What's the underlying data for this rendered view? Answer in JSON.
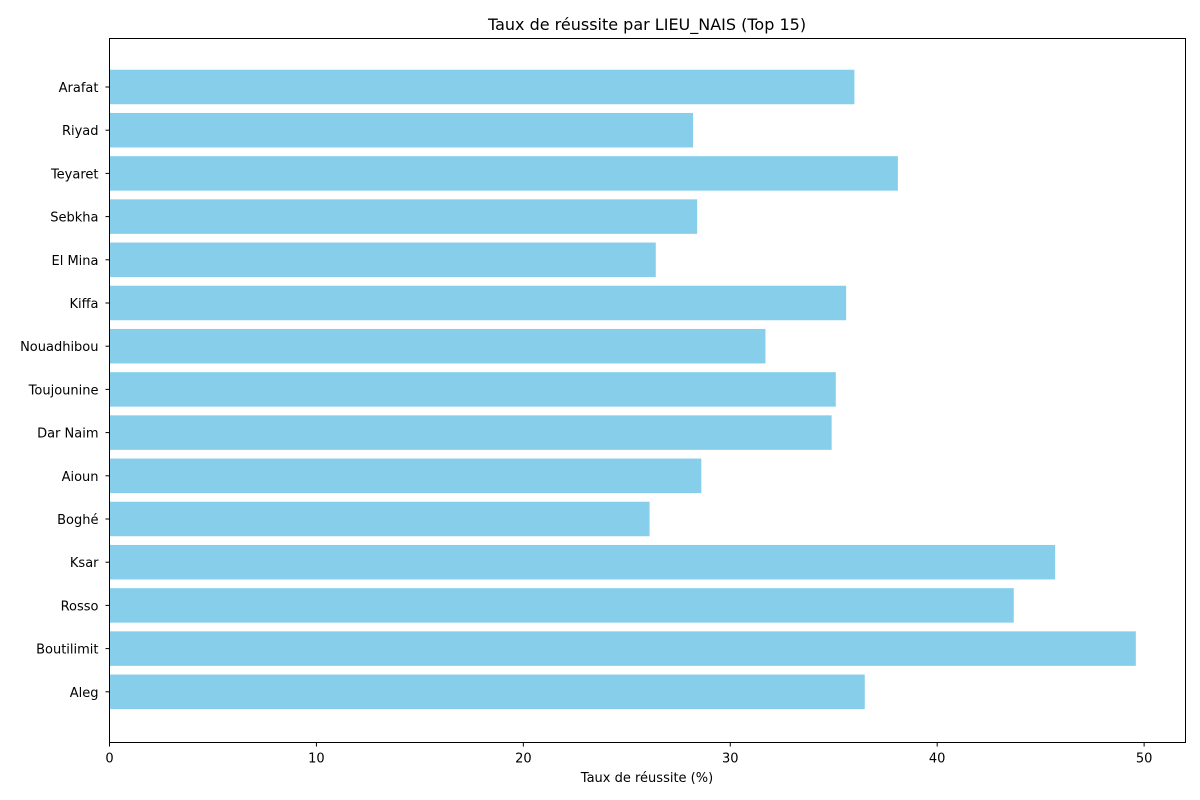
{
  "chart_data": {
    "type": "bar",
    "orientation": "horizontal",
    "title": "Taux de réussite par LIEU_NAIS (Top 15)",
    "xlabel": "Taux de réussite (%)",
    "ylabel": "",
    "xlim": [
      0,
      52
    ],
    "xticks": [
      0,
      10,
      20,
      30,
      40,
      50
    ],
    "categories": [
      "Arafat",
      "Riyad",
      "Teyaret",
      "Sebkha",
      "El Mina",
      "Kiffa",
      "Nouadhibou",
      "Toujounine",
      "Dar Naim",
      "Aioun",
      "Boghé",
      "Ksar",
      "Rosso",
      "Boutilimit",
      "Aleg"
    ],
    "values": [
      36.0,
      28.2,
      38.1,
      28.4,
      26.4,
      35.6,
      31.7,
      35.1,
      34.9,
      28.6,
      26.1,
      45.7,
      43.7,
      49.6,
      36.5
    ],
    "bar_color": "#87ceeb",
    "grid": false
  }
}
